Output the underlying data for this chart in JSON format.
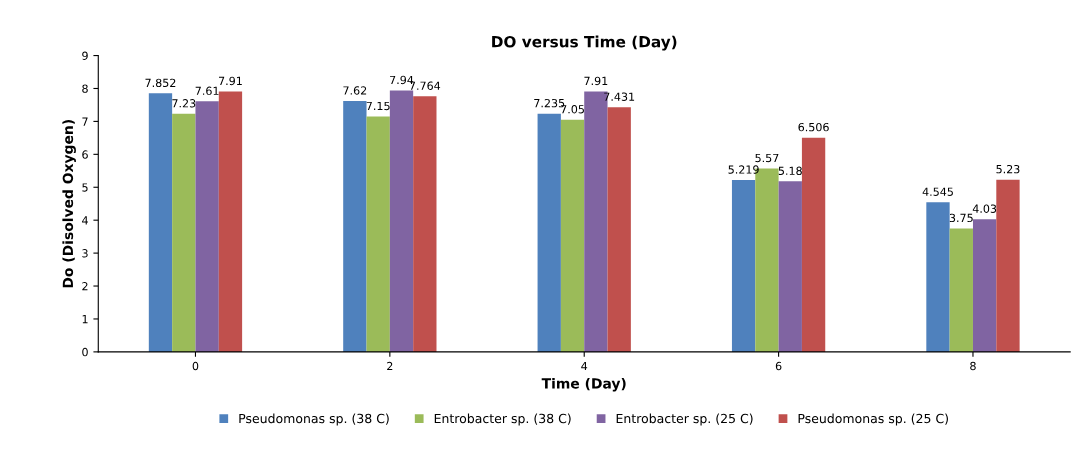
{
  "chart_data": {
    "type": "bar",
    "title": "DO versus Time (Day)",
    "xlabel": "Time (Day)",
    "ylabel": "Do (Disolved Oxygen)",
    "categories": [
      "0",
      "2",
      "4",
      "6",
      "8"
    ],
    "series": [
      {
        "name": "Pseudomonas sp. (38 C)",
        "color": "#4f81bd",
        "values": [
          7.852,
          7.62,
          7.235,
          5.219,
          4.545
        ]
      },
      {
        "name": "Entrobacter sp. (38 C)",
        "color": "#9bbb59",
        "values": [
          7.23,
          7.15,
          7.05,
          5.57,
          3.75
        ]
      },
      {
        "name": "Entrobacter sp. (25 C)",
        "color": "#8064a2",
        "values": [
          7.61,
          7.94,
          7.91,
          5.18,
          4.03
        ]
      },
      {
        "name": "Pseudomonas sp. (25 C)",
        "color": "#c0504d",
        "values": [
          7.91,
          7.764,
          7.431,
          6.506,
          5.23
        ]
      }
    ],
    "ylim": [
      0,
      9
    ],
    "yticks": [
      0,
      1,
      2,
      3,
      4,
      5,
      6,
      7,
      8,
      9
    ],
    "grid": false,
    "legend": "bottom",
    "data_labels": true
  }
}
